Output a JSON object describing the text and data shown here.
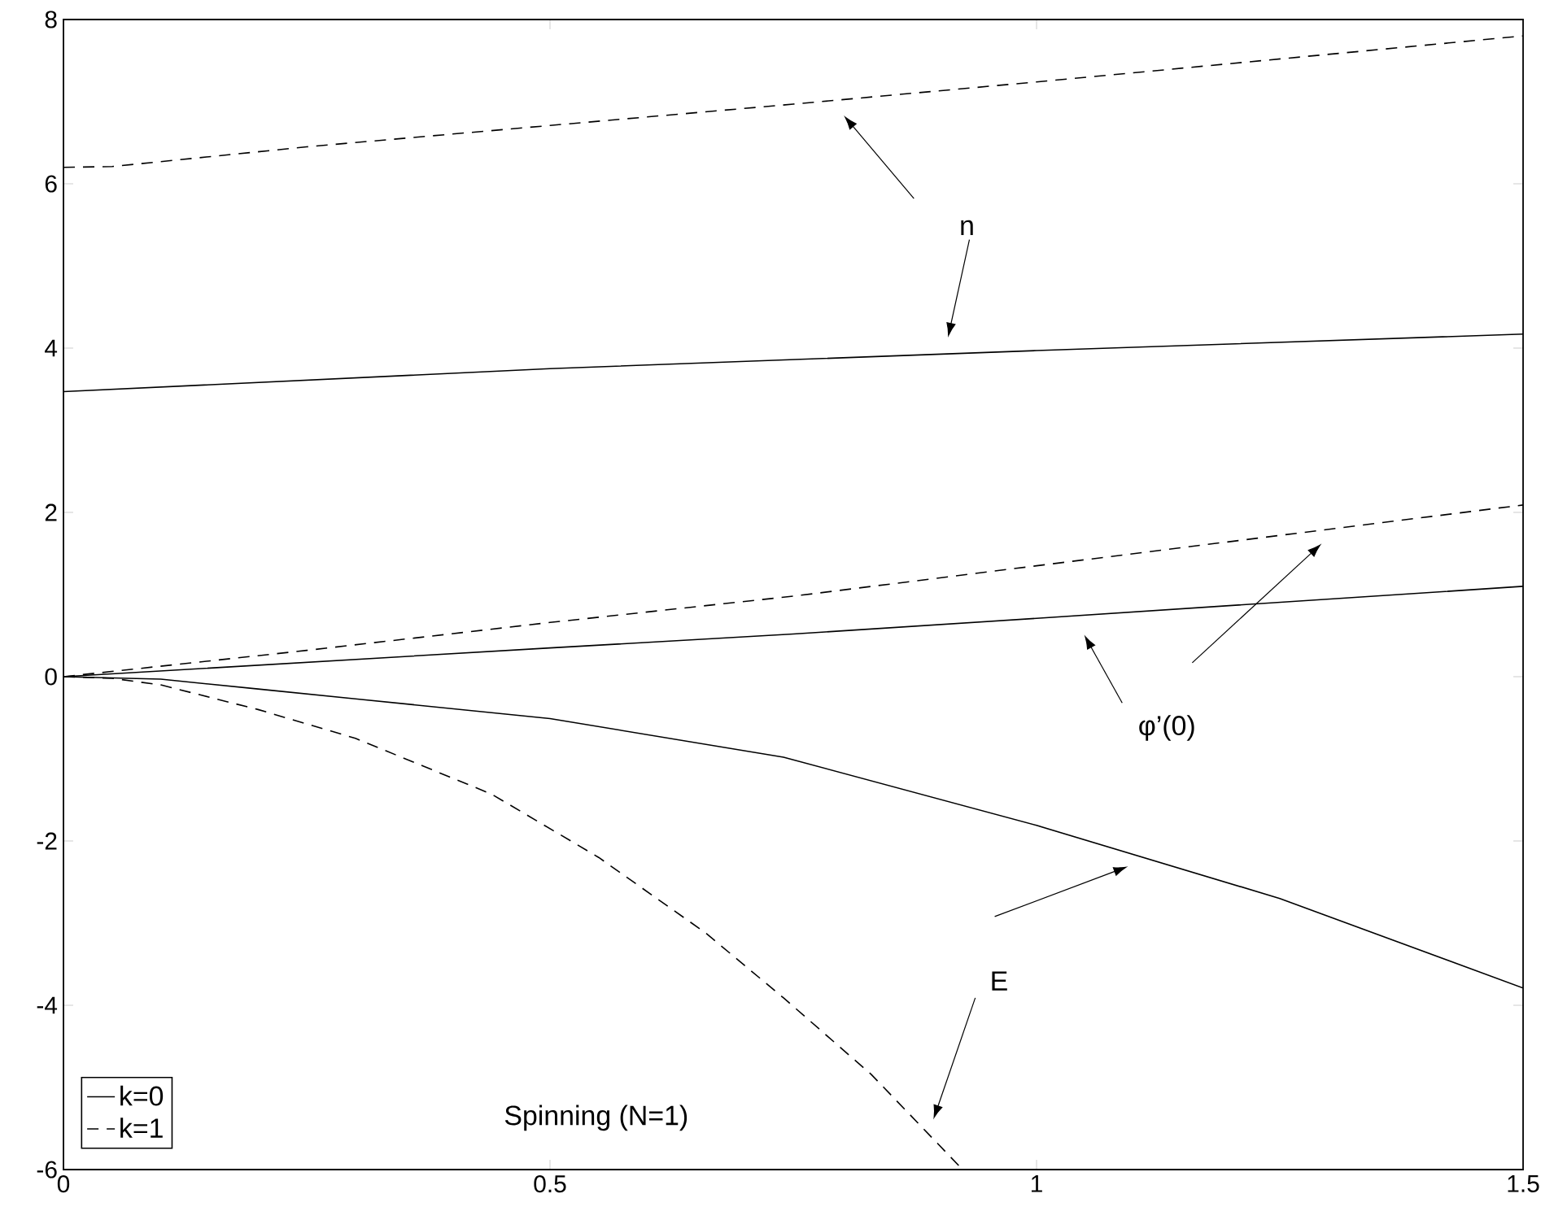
{
  "chart_data": {
    "type": "line",
    "annotations": [
      "n",
      "φ’(0)",
      "E",
      "Spinning (N=1)"
    ],
    "xlim": [
      0,
      1.5
    ],
    "ylim": [
      -6,
      8
    ],
    "xticks": [
      0,
      0.5,
      1,
      1.5
    ],
    "yticks": [
      -6,
      -4,
      -2,
      0,
      2,
      4,
      6,
      8
    ],
    "legend": "bottom left",
    "grid": false,
    "marker": "none",
    "series": [
      {
        "name": "k=0",
        "color": "#000000",
        "line_style": "solid",
        "x": [
          0,
          0.5,
          1.0,
          1.5
        ],
        "values": [
          3.47,
          3.75,
          3.97,
          4.17
        ]
      },
      {
        "name": "k=1",
        "color": "#000000",
        "line_style": "dashed",
        "x": [
          0,
          0.05,
          0.25,
          0.5,
          0.75,
          1.0,
          1.25,
          1.5
        ],
        "values": [
          6.2,
          6.21,
          6.45,
          6.71,
          6.97,
          7.24,
          7.52,
          7.8
        ]
      },
      {
        "color": "#000000",
        "line_style": "solid",
        "x": [
          0,
          0.5,
          0.75,
          1.0,
          1.5
        ],
        "values": [
          0,
          0.35,
          0.52,
          0.71,
          1.1
        ]
      },
      {
        "color": "#000000",
        "line_style": "dashed",
        "x": [
          0,
          0.25,
          0.5,
          0.75,
          1.0,
          1.25,
          1.5
        ],
        "values": [
          0,
          0.32,
          0.66,
          0.98,
          1.35,
          1.72,
          2.09
        ]
      },
      {
        "color": "#000000",
        "line_style": "solid",
        "x": [
          0,
          0.1,
          0.2,
          0.3,
          0.5,
          0.74,
          1.0,
          1.25,
          1.5
        ],
        "values": [
          0,
          -0.03,
          -0.15,
          -0.27,
          -0.51,
          -0.98,
          -1.81,
          -2.7,
          -3.79
        ]
      },
      {
        "color": "#000000",
        "line_style": "dashed",
        "x": [
          0,
          0.05,
          0.1,
          0.2,
          0.3,
          0.44,
          0.55,
          0.66,
          0.74,
          0.83,
          0.92
        ],
        "values": [
          0,
          -0.02,
          -0.1,
          -0.4,
          -0.75,
          -1.43,
          -2.2,
          -3.12,
          -3.91,
          -4.84,
          -5.95
        ]
      }
    ]
  }
}
